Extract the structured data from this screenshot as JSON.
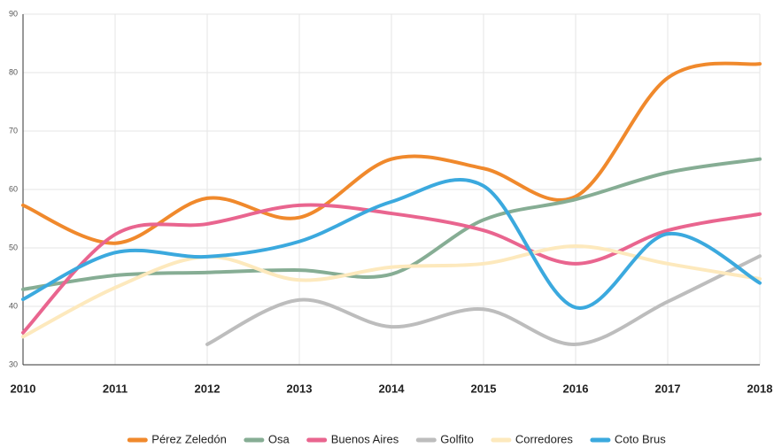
{
  "chart_data": {
    "type": "line",
    "categories": [
      "2010",
      "2011",
      "2012",
      "2013",
      "2014",
      "2015",
      "2016",
      "2017",
      "2018"
    ],
    "ylim": [
      30,
      90
    ],
    "yticks": [
      30,
      40,
      50,
      60,
      70,
      80,
      90
    ],
    "grid": true,
    "smooth": true,
    "legend": "bottom",
    "series": [
      {
        "name": "Pérez Zeledón",
        "color": "#f0892c",
        "values": [
          57.3,
          50.8,
          58.5,
          55.2,
          65.2,
          63.6,
          58.8,
          79.1,
          81.5
        ]
      },
      {
        "name": "Osa",
        "color": "#86ad94",
        "values": [
          42.9,
          45.3,
          45.8,
          46.2,
          45.5,
          54.8,
          58.3,
          62.9,
          65.2
        ]
      },
      {
        "name": "Buenos Aires",
        "color": "#e9658f",
        "values": [
          35.5,
          52.3,
          54.1,
          57.3,
          55.9,
          53.0,
          47.3,
          53.0,
          55.8
        ]
      },
      {
        "name": "Golfito",
        "color": "#bdbdbd",
        "values": [
          null,
          null,
          33.5,
          41.1,
          36.5,
          39.5,
          33.5,
          40.8,
          48.6
        ]
      },
      {
        "name": "Corredores",
        "color": "#fde9bd",
        "values": [
          34.8,
          43.2,
          48.5,
          44.5,
          46.7,
          47.3,
          50.3,
          47.3,
          44.7
        ]
      },
      {
        "name": "Coto Brus",
        "color": "#3ba9de",
        "values": [
          41.2,
          49.2,
          48.5,
          51.1,
          57.9,
          60.6,
          39.8,
          52.4,
          44.0
        ]
      }
    ]
  }
}
